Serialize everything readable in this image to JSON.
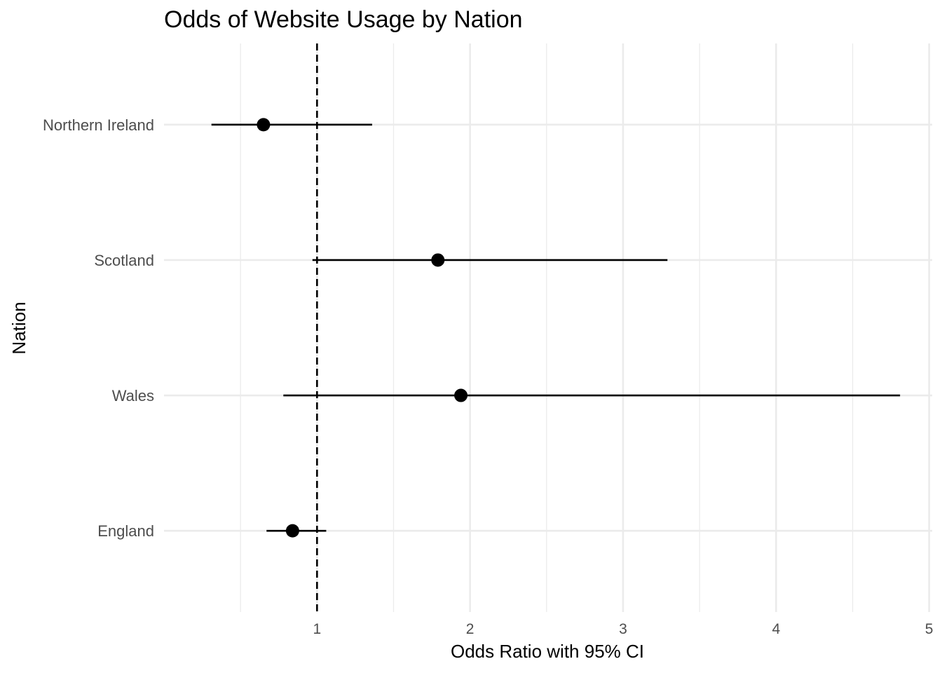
{
  "chart_data": {
    "type": "scatter",
    "subtype": "forest-plot",
    "title": "Odds of Website Usage by Nation",
    "xlabel": "Odds Ratio with 95% CI",
    "ylabel": "Nation",
    "xlim": [
      0,
      5.02
    ],
    "xticks": [
      1,
      2,
      3,
      4,
      5
    ],
    "xtick_labels": [
      "1",
      "2",
      "3",
      "4",
      "5"
    ],
    "reference_line": {
      "x": 1,
      "style": "dashed",
      "color": "#000000"
    },
    "grid": true,
    "categories": [
      "England",
      "Wales",
      "Scotland",
      "Northern Ireland"
    ],
    "estimates": [
      0.84,
      1.94,
      1.79,
      0.65
    ],
    "ci_lower": [
      0.67,
      0.78,
      0.97,
      0.31
    ],
    "ci_upper": [
      1.06,
      4.81,
      3.29,
      1.36
    ],
    "colors": {
      "point": "#000000",
      "grid": "#ebebeb",
      "text": "#4d4d4d"
    }
  }
}
